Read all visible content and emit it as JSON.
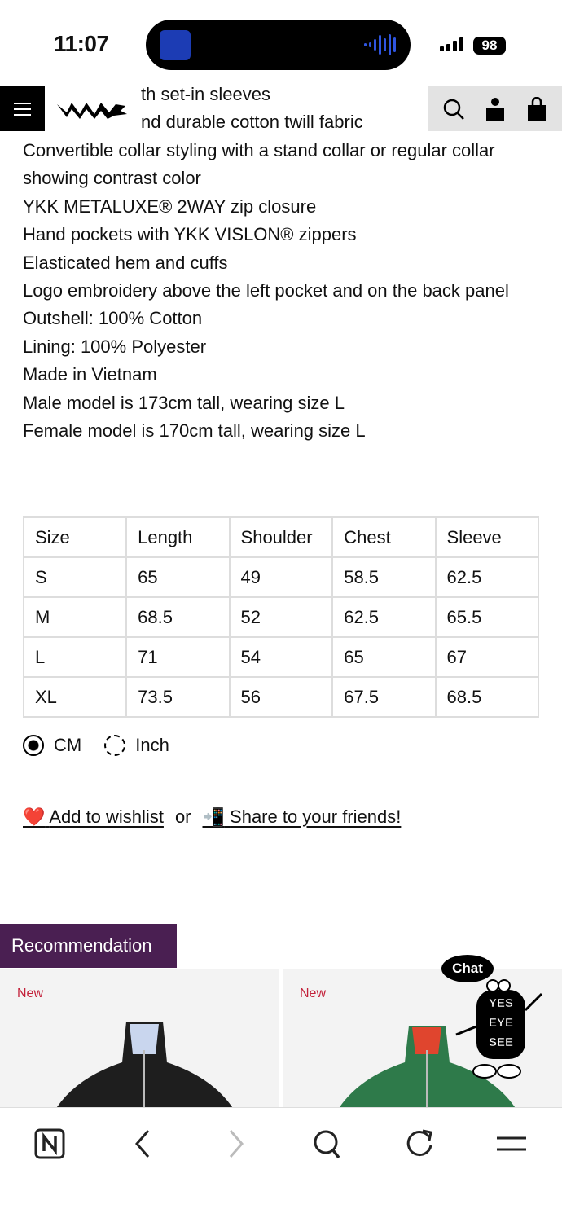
{
  "status_bar": {
    "time": "11:07",
    "battery": "98"
  },
  "header": {
    "menu_icon": "hamburger-icon",
    "logo_icon": "brand-logo",
    "icons": [
      "search-icon",
      "account-icon",
      "bag-icon"
    ]
  },
  "description": {
    "partial_lines": [
      "th set-in sleeves",
      "nd durable cotton twill fabric"
    ],
    "lines": [
      "Convertible collar styling with a stand collar or regular collar showing contrast color",
      "YKK METALUXE® 2WAY zip closure",
      "Hand pockets with YKK VISLON® zippers",
      "Elasticated hem and cuffs",
      "Logo embroidery above the left pocket and on the back panel",
      "Outshell: 100% Cotton",
      "Lining: 100% Polyester",
      "Made in Vietnam",
      "Male model is 173cm tall, wearing size L",
      "Female model is 170cm tall, wearing size L"
    ]
  },
  "size_table": {
    "headers": [
      "Size",
      "Length",
      "Shoulder",
      "Chest",
      "Sleeve"
    ],
    "rows": [
      [
        "S",
        "65",
        "49",
        "58.5",
        "62.5"
      ],
      [
        "M",
        "68.5",
        "52",
        "62.5",
        "65.5"
      ],
      [
        "L",
        "71",
        "54",
        "65",
        "67"
      ],
      [
        "XL",
        "73.5",
        "56",
        "67.5",
        "68.5"
      ]
    ]
  },
  "units": {
    "options": [
      "CM",
      "Inch"
    ],
    "selected": "CM"
  },
  "actions": {
    "wishlist_emoji": "❤️",
    "wishlist": "Add to wishlist",
    "or": "or",
    "share_emoji": "📲",
    "share": "Share to your friends!"
  },
  "recommendation": {
    "title": "Recommendation",
    "items": [
      {
        "badge": "New",
        "color": "#1e1e1e",
        "collar": "#c9d6ee"
      },
      {
        "badge": "New",
        "color": "#2e7a4a",
        "collar": "#e0452e"
      }
    ]
  },
  "chat": {
    "label": "Chat",
    "mascot_text": "YES EYE SEE"
  },
  "bottom_bar": {
    "icons": [
      "n-home-icon",
      "back-icon",
      "forward-icon",
      "search-icon",
      "reload-icon",
      "menu-icon"
    ]
  }
}
